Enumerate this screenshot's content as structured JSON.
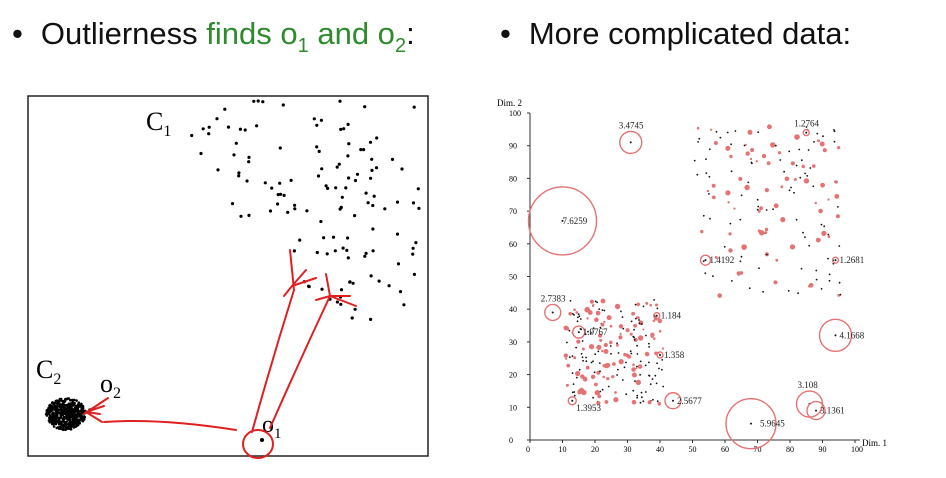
{
  "left_header": {
    "bullet": "•",
    "text_plain": "Outlierness ",
    "text_green": "finds o",
    "sub1": "1",
    "and": " and o",
    "sub2": "2",
    "colon": ":"
  },
  "right_header": {
    "bullet": "•",
    "text": "More complicated data:"
  },
  "left_diagram": {
    "cluster1_label": "C",
    "cluster1_sub": "1",
    "cluster2_label": "C",
    "cluster2_sub": "2",
    "o1_label": "o",
    "o1_sub": "1",
    "o2_label": "o",
    "o2_sub": "2",
    "point_color": "#000000",
    "annotation_color": "#e02020"
  },
  "right_chart": {
    "ylabel": "Dim. 2",
    "xlabel": "Dim. 1",
    "x_ticks": [
      "0",
      "10",
      "20",
      "30",
      "40",
      "50",
      "60",
      "70",
      "80",
      "90",
      "100"
    ],
    "y_ticks": [
      "0",
      "10",
      "20",
      "30",
      "40",
      "50",
      "60",
      "70",
      "80",
      "90",
      "100"
    ],
    "circle_color": "#e57373",
    "outliers": [
      {
        "label": "3.4745",
        "x": 31,
        "y": 91
      },
      {
        "label": "1.2764",
        "x": 85,
        "y": 94
      },
      {
        "label": "7.6259",
        "x": 10,
        "y": 67
      },
      {
        "label": "1.4192",
        "x": 54,
        "y": 55
      },
      {
        "label": "1.2681",
        "x": 94,
        "y": 55
      },
      {
        "label": "2.7383",
        "x": 7,
        "y": 39
      },
      {
        "label": "1.184",
        "x": 39,
        "y": 38
      },
      {
        "label": "1.9767",
        "x": 15,
        "y": 33
      },
      {
        "label": "4.1668",
        "x": 94,
        "y": 32
      },
      {
        "label": "1.358",
        "x": 40,
        "y": 26
      },
      {
        "label": "2.5677",
        "x": 44,
        "y": 12
      },
      {
        "label": "1.3953",
        "x": 13,
        "y": 12
      },
      {
        "label": "3.108",
        "x": 86,
        "y": 11
      },
      {
        "label": "3.1361",
        "x": 88,
        "y": 9
      },
      {
        "label": "5.9645",
        "x": 68,
        "y": 5
      }
    ]
  }
}
